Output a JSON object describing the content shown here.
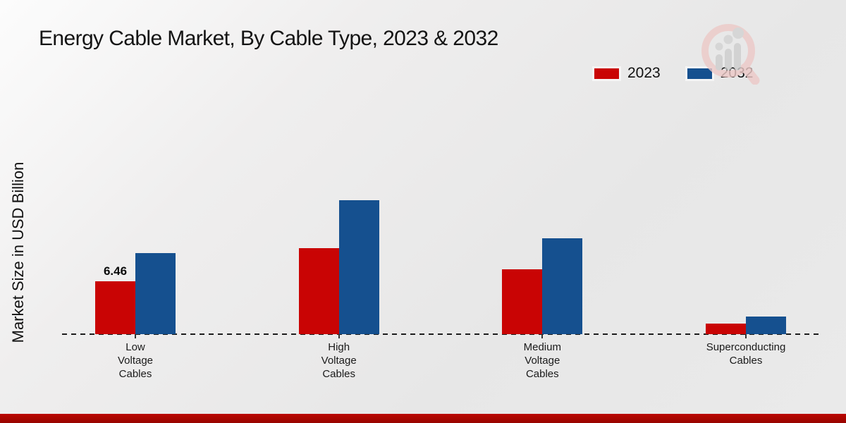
{
  "header": {
    "title": "Energy Cable Market, By Cable Type, 2023 & 2032"
  },
  "y_axis": {
    "label": "Market Size in USD Billion"
  },
  "legend": {
    "position": "top-right",
    "items": [
      {
        "label": "2023",
        "color": "#c90404"
      },
      {
        "label": "2032",
        "color": "#15508f"
      }
    ]
  },
  "chart_data": {
    "type": "bar",
    "title": "Energy Cable Market, By Cable Type, 2023 & 2032",
    "xlabel": "",
    "ylabel": "Market Size in USD Billion",
    "categories": [
      "Low\nVoltage\nCables",
      "High\nVoltage\nCables",
      "Medium\nVoltage\nCables",
      "Superconducting\nCables"
    ],
    "series": [
      {
        "name": "2023",
        "color": "#c90404",
        "values": [
          6.46,
          10.5,
          7.9,
          1.3
        ],
        "data_labels": [
          "6.46",
          "",
          "",
          ""
        ]
      },
      {
        "name": "2032",
        "color": "#15508f",
        "values": [
          9.9,
          16.4,
          11.7,
          2.2
        ],
        "data_labels": [
          "",
          "",
          "",
          ""
        ]
      }
    ],
    "gridlines": false,
    "baseline_style": "dashed",
    "legend_position": "top-right"
  },
  "footer": {
    "bar_color_top": "#bb0700",
    "bar_color_bottom": "#970400"
  }
}
